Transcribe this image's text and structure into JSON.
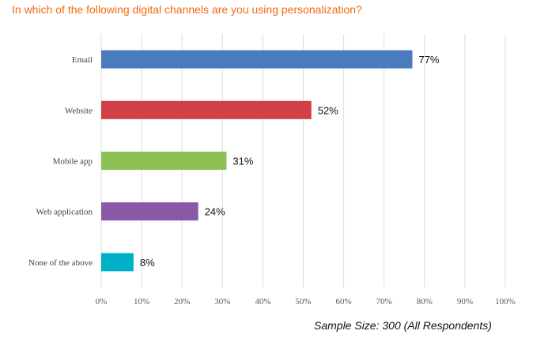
{
  "chart_data": {
    "type": "bar",
    "orientation": "horizontal",
    "title": "In which of the following digital channels are you using personalization?",
    "categories": [
      "Email",
      "Website",
      "Mobile app",
      "Web application",
      "None of the above"
    ],
    "values": [
      77,
      52,
      31,
      24,
      8
    ],
    "data_labels": [
      "77%",
      "52%",
      "31%",
      "24%",
      "8%"
    ],
    "colors": [
      "#4a7bbf",
      "#d04045",
      "#8dc155",
      "#8a5aa6",
      "#00b0c8"
    ],
    "xlim": [
      0,
      100
    ],
    "xticks": [
      0,
      10,
      20,
      30,
      40,
      50,
      60,
      70,
      80,
      90,
      100
    ],
    "xtick_labels": [
      "0%",
      "10%",
      "20%",
      "30%",
      "40%",
      "50%",
      "60%",
      "70%",
      "80%",
      "90%",
      "100%"
    ],
    "xlabel": "",
    "ylabel": "",
    "grid": true,
    "legend": "none"
  },
  "footnote": "Sample Size: 300 (All Respondents)"
}
